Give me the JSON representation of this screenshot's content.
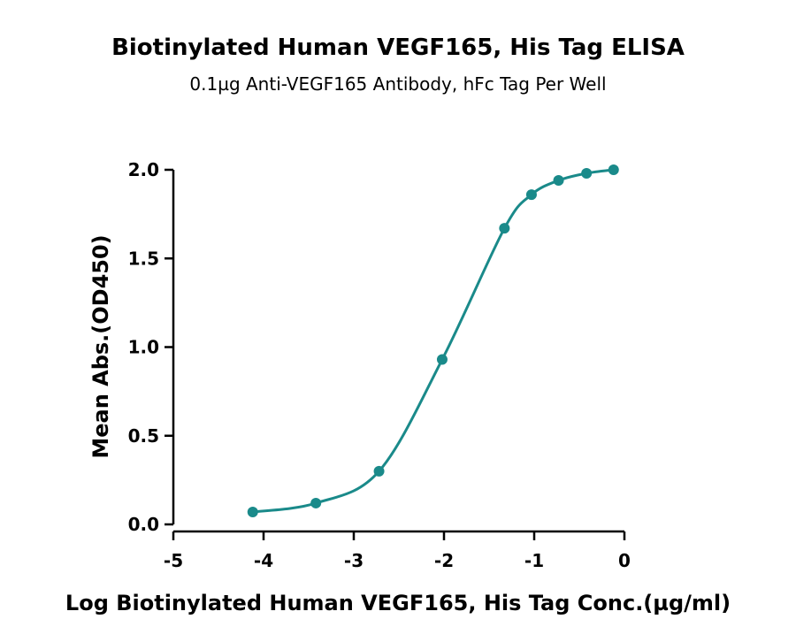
{
  "chart_data": {
    "type": "line",
    "title": "Biotinylated Human VEGF165, His Tag ELISA",
    "subtitle": "0.1µg Anti-VEGF165 Antibody, hFc Tag Per Well",
    "xlabel": "Log Biotinylated Human VEGF165, His Tag Conc.(µg/ml)",
    "ylabel": "Mean Abs.(OD450)",
    "xlim": [
      -5,
      0
    ],
    "ylim": [
      0,
      2.0
    ],
    "xticks": [
      -5,
      -4,
      -3,
      -2,
      -1,
      0
    ],
    "xtick_labels": [
      "-5",
      "-4",
      "-3",
      "-2",
      "-1",
      "0"
    ],
    "yticks": [
      0,
      0.5,
      1.0,
      1.5,
      2.0
    ],
    "ytick_labels": [
      "0.0",
      "0.5",
      "1.0",
      "1.5",
      "2.0"
    ],
    "grid": false,
    "colors": {
      "series": "#1a8a8a"
    },
    "series": [
      {
        "x": [
          -4.12,
          -3.42,
          -2.72,
          -2.02,
          -1.33,
          -1.03,
          -0.73,
          -0.42,
          -0.12
        ],
        "y": [
          0.07,
          0.12,
          0.3,
          0.93,
          1.67,
          1.86,
          1.94,
          1.98,
          2.0
        ]
      }
    ]
  }
}
